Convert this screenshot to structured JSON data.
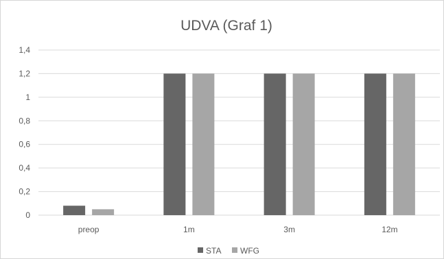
{
  "chart_data": {
    "type": "bar",
    "title": "UDVA (Graf 1)",
    "categories": [
      "preop",
      "1m",
      "3m",
      "12m"
    ],
    "series": [
      {
        "name": "STA",
        "color": "#666666",
        "values": [
          0.08,
          1.2,
          1.2,
          1.2
        ]
      },
      {
        "name": "WFG",
        "color": "#a6a6a6",
        "values": [
          0.05,
          1.2,
          1.2,
          1.2
        ]
      }
    ],
    "ylim": [
      0,
      1.4
    ],
    "yticks": [
      0,
      0.2,
      0.4,
      0.6,
      0.8,
      1,
      1.2,
      1.4
    ],
    "ytick_labels": [
      "0",
      "0,2",
      "0,4",
      "0,6",
      "0,8",
      "1",
      "1,2",
      "1,4"
    ],
    "grid": true,
    "legend_position": "bottom",
    "gridline_color": "#d9d9d9"
  }
}
